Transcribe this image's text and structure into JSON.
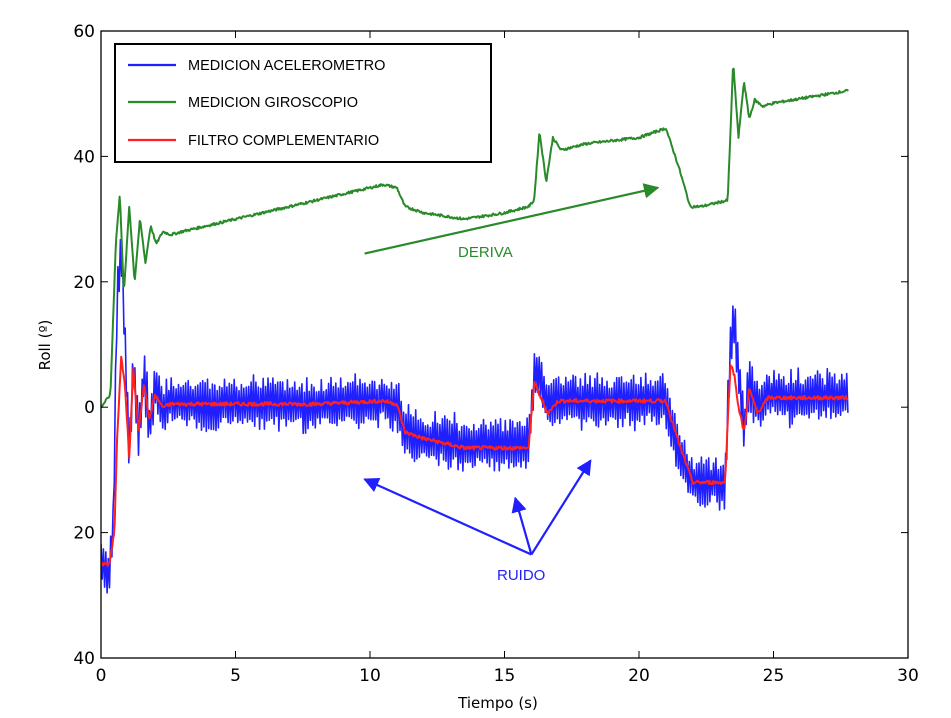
{
  "chart_data": {
    "type": "line",
    "xlabel": "Tiempo (s)",
    "ylabel": "Roll (º)",
    "xlim": [
      0,
      30
    ],
    "ylim": [
      -40,
      60
    ],
    "xticks": [
      0,
      5,
      10,
      15,
      20,
      25,
      30
    ],
    "xtick_labels": [
      "0",
      "5",
      "10",
      "15",
      "20",
      "25",
      "30"
    ],
    "yticks": [
      60,
      40,
      20,
      0,
      -20,
      -40
    ],
    "ytick_labels": [
      "60",
      "40",
      "20",
      "0",
      "20",
      "40"
    ],
    "grid": false,
    "legend_position": "top-left",
    "series": [
      {
        "name": "MEDICION ACELEROMETRO",
        "color": "#1f1fff",
        "noise_amplitude": 5,
        "x": [
          0.0,
          0.3,
          0.45,
          0.6,
          0.75,
          0.9,
          1.05,
          1.2,
          1.4,
          1.6,
          1.8,
          2.0,
          2.3,
          2.6,
          3,
          5,
          8,
          10.5,
          11.0,
          11.3,
          12,
          13.5,
          15,
          15.9,
          16.1,
          16.3,
          16.6,
          17,
          18,
          20,
          21.0,
          21.5,
          22,
          23.2,
          23.4,
          23.55,
          23.7,
          23.9,
          24.1,
          24.4,
          24.8,
          25.5,
          27.8
        ],
        "y": [
          -25,
          -27,
          -18,
          18,
          25,
          10,
          -8,
          8,
          -5,
          6,
          -3,
          3,
          0,
          1,
          0.5,
          0.5,
          0.5,
          1,
          0,
          -4,
          -5,
          -6,
          -6,
          -6,
          4,
          6,
          0,
          1,
          1,
          1,
          1,
          -7,
          -12,
          -12,
          10,
          14,
          6,
          -4,
          4,
          0,
          2,
          1.5,
          2
        ]
      },
      {
        "name": "MEDICION GIROSCOPIO",
        "color": "#2a8a2a",
        "x": [
          0.0,
          0.35,
          0.55,
          0.7,
          0.85,
          1.05,
          1.25,
          1.45,
          1.65,
          1.85,
          2.05,
          2.3,
          2.6,
          3,
          5,
          8,
          10.5,
          11.0,
          11.3,
          12,
          13.5,
          15,
          15.9,
          16.1,
          16.3,
          16.55,
          16.8,
          17.1,
          18,
          20,
          21.0,
          21.5,
          21.9,
          22.3,
          23.3,
          23.5,
          23.7,
          23.9,
          24.1,
          24.3,
          24.6,
          25,
          27.8
        ],
        "y": [
          0,
          2,
          26,
          34,
          18,
          32,
          20,
          30,
          23,
          29,
          26,
          28,
          27.5,
          28,
          30,
          33,
          35.5,
          35,
          32,
          31,
          30,
          31,
          32,
          33,
          44,
          36,
          43,
          41,
          42,
          43,
          44.5,
          38,
          32,
          32,
          33,
          55,
          43,
          52,
          46,
          49,
          48,
          48.5,
          50.5
        ]
      },
      {
        "name": "FILTRO COMPLEMENTARIO",
        "color": "#ff2020",
        "x": [
          0.0,
          0.3,
          0.5,
          0.6,
          0.75,
          0.9,
          1.05,
          1.2,
          1.4,
          1.6,
          1.8,
          2.0,
          2.3,
          2.6,
          3,
          5,
          8,
          10.5,
          11.0,
          11.3,
          12,
          13.5,
          15,
          15.9,
          16.1,
          16.3,
          16.6,
          17,
          18,
          20,
          21.0,
          21.5,
          22,
          23.2,
          23.4,
          23.55,
          23.7,
          23.9,
          24.1,
          24.4,
          24.8,
          25.5,
          27.8
        ],
        "y": [
          -25,
          -25,
          -20,
          -5,
          8,
          3,
          -8,
          6,
          -4,
          4,
          -2,
          2,
          0,
          0.5,
          0.5,
          0.5,
          0.5,
          1,
          0.5,
          -4,
          -5,
          -6.5,
          -6.5,
          -6.5,
          4,
          2,
          -1,
          1,
          1,
          1,
          1,
          -6,
          -12,
          -12,
          7,
          5,
          0,
          -4,
          3,
          -1,
          1.5,
          1.5,
          1.5
        ]
      }
    ],
    "annotations": [
      {
        "text": "DERIVA",
        "color": "#2a8a2a",
        "arrow_from": [
          9.8,
          24.5
        ],
        "arrow_to": [
          20.7,
          35
        ]
      },
      {
        "text": "RUIDO",
        "color": "#1f1fff",
        "arrow_from": [
          16.0,
          -23.5
        ],
        "arrows_to": [
          [
            9.8,
            -11.5
          ],
          [
            15.4,
            -14.5
          ],
          [
            18.2,
            -8.5
          ]
        ]
      }
    ]
  }
}
